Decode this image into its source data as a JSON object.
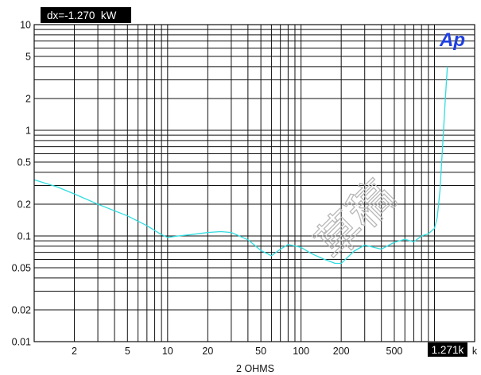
{
  "chart_data": {
    "type": "line",
    "title": "",
    "xlabel": "2 OHMS",
    "ylabel": "",
    "x_scale": "log",
    "y_scale": "log",
    "xlim": [
      1,
      2000
    ],
    "ylim": [
      0.01,
      10
    ],
    "grid": true,
    "x_ticks": [
      {
        "value": 2,
        "label": "2"
      },
      {
        "value": 5,
        "label": "5"
      },
      {
        "value": 10,
        "label": "10"
      },
      {
        "value": 20,
        "label": "20"
      },
      {
        "value": 50,
        "label": "50"
      },
      {
        "value": 100,
        "label": "100"
      },
      {
        "value": 200,
        "label": "200"
      },
      {
        "value": 500,
        "label": "500"
      },
      {
        "value": 2000,
        "label": "k"
      }
    ],
    "y_ticks": [
      {
        "value": 10,
        "label": "10"
      },
      {
        "value": 5,
        "label": "5"
      },
      {
        "value": 2,
        "label": "2"
      },
      {
        "value": 1,
        "label": "1"
      },
      {
        "value": 0.5,
        "label": "0.5"
      },
      {
        "value": 0.2,
        "label": "0.2"
      },
      {
        "value": 0.1,
        "label": "0.1"
      },
      {
        "value": 0.05,
        "label": "0.05"
      },
      {
        "value": 0.02,
        "label": "0.02"
      },
      {
        "value": 0.01,
        "label": "0.01"
      }
    ],
    "readout": "dx=-1.270  kW",
    "cursor_label": "1.271k",
    "cursor_x": 1271,
    "series": [
      {
        "color": "#2fdde0",
        "x": [
          1,
          1.5,
          2,
          3,
          5,
          7,
          9,
          10,
          12,
          15,
          20,
          25,
          30,
          40,
          50,
          60,
          70,
          80,
          100,
          120,
          150,
          180,
          200,
          250,
          300,
          400,
          500,
          600,
          700,
          800,
          900,
          1000,
          1050,
          1100,
          1150,
          1200,
          1250
        ],
        "y": [
          0.34,
          0.29,
          0.25,
          0.2,
          0.155,
          0.125,
          0.103,
          0.097,
          0.1,
          0.103,
          0.108,
          0.11,
          0.108,
          0.092,
          0.073,
          0.065,
          0.075,
          0.083,
          0.078,
          0.068,
          0.06,
          0.055,
          0.055,
          0.072,
          0.082,
          0.075,
          0.087,
          0.093,
          0.088,
          0.1,
          0.105,
          0.118,
          0.15,
          0.27,
          0.7,
          1.8,
          4.0
        ]
      }
    ]
  },
  "logo": {
    "text": "Ap",
    "color": "#1f3fe0"
  },
  "watermark": {
    "text": "草稿"
  }
}
